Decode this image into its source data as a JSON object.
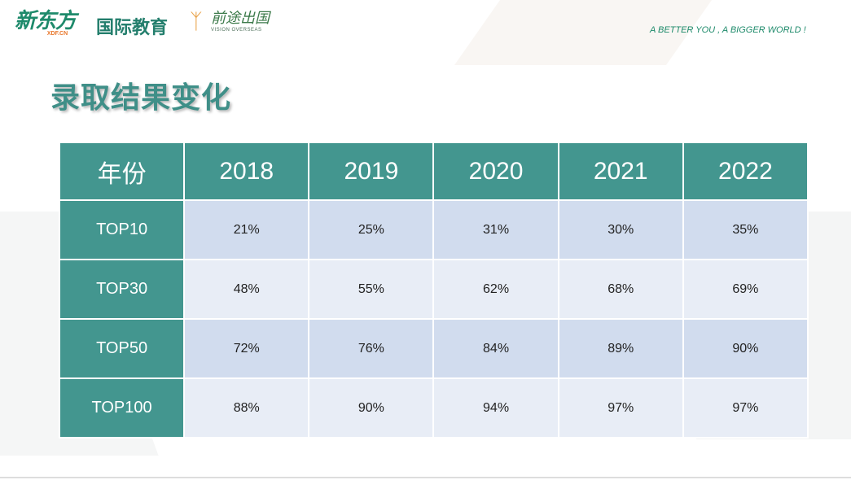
{
  "logos": {
    "xdf_cn": "新东方",
    "xdf_en": "XDF.CN",
    "intl": "国际教育",
    "vision_cn": "前途出国",
    "vision_en": "VISION OVERSEAS"
  },
  "tagline": "A BETTER YOU , A BIGGER WORLD !",
  "title": "录取结果变化",
  "colors": {
    "header": "#43968f",
    "row_odd": "#d1dcee",
    "row_even": "#e8edf6",
    "title": "#3f8f88"
  },
  "chart_data": {
    "type": "table",
    "columns": [
      "年份",
      "2018",
      "2019",
      "2020",
      "2021",
      "2022"
    ],
    "rows": [
      {
        "label": "TOP10",
        "values": [
          "21%",
          "25%",
          "31%",
          "30%",
          "35%"
        ]
      },
      {
        "label": "TOP30",
        "values": [
          "48%",
          "55%",
          "62%",
          "68%",
          "69%"
        ]
      },
      {
        "label": "TOP50",
        "values": [
          "72%",
          "76%",
          "84%",
          "89%",
          "90%"
        ]
      },
      {
        "label": "TOP100",
        "values": [
          "88%",
          "90%",
          "94%",
          "97%",
          "97%"
        ]
      }
    ]
  }
}
